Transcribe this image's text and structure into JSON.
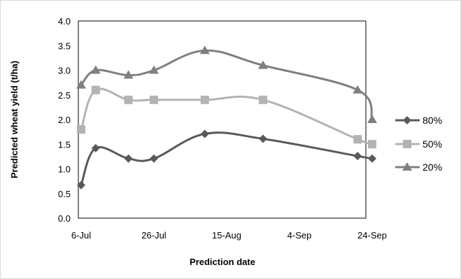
{
  "chart_data": {
    "type": "line",
    "xlabel": "Prediction date",
    "ylabel": "Predicted wheat yield (t/ha)",
    "ylim": [
      0,
      4
    ],
    "yticks": [
      "0.0",
      "0.5",
      "1.0",
      "1.5",
      "2.0",
      "2.5",
      "3.0",
      "3.5",
      "4.0"
    ],
    "xticks": [
      {
        "label": "6-Jul",
        "day": 0
      },
      {
        "label": "26-Jul",
        "day": 20
      },
      {
        "label": "15-Aug",
        "day": 40
      },
      {
        "label": "4-Sep",
        "day": 60
      },
      {
        "label": "24-Sep",
        "day": 80
      }
    ],
    "x_dates": [
      "6-Jul",
      "10-Jul",
      "19-Jul",
      "26-Jul",
      "9-Aug",
      "25-Aug",
      "20-Sep",
      "24-Sep"
    ],
    "x_days": [
      0,
      4,
      13,
      20,
      34,
      50,
      76,
      80
    ],
    "grid": false,
    "legend_position": "right",
    "series": [
      {
        "name": "80%",
        "color": "#595959",
        "marker": "diamond",
        "values": [
          0.67,
          1.42,
          1.21,
          1.21,
          1.71,
          1.61,
          1.26,
          1.21
        ]
      },
      {
        "name": "50%",
        "color": "#b3b3b3",
        "marker": "square",
        "values": [
          1.8,
          2.6,
          2.4,
          2.4,
          2.4,
          2.4,
          1.6,
          1.5
        ]
      },
      {
        "name": "20%",
        "color": "#808080",
        "marker": "triangle",
        "values": [
          2.7,
          3.0,
          2.9,
          3.0,
          3.4,
          3.1,
          2.6,
          2.0
        ]
      }
    ]
  }
}
